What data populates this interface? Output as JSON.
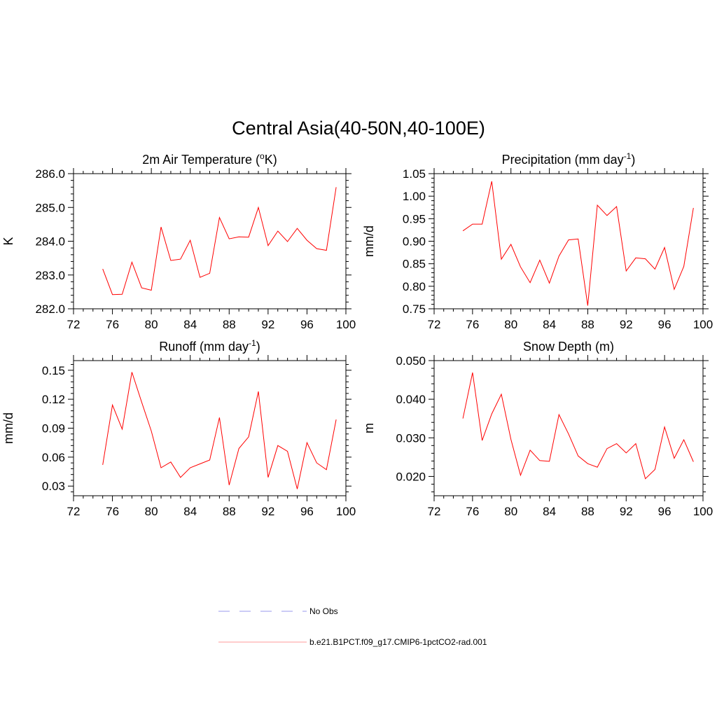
{
  "figure": {
    "title": "Central Asia(40-50N,40-100E)"
  },
  "legend": {
    "items": [
      {
        "label": "No Obs",
        "color": "#9999ee",
        "style": "dashed"
      },
      {
        "label": "b.e21.B1PCT.f09_g17.CMIP6-1pctCO2-rad.001",
        "color": "#ff0000",
        "style": "solid"
      }
    ]
  },
  "chart_data": [
    {
      "type": "line",
      "title": "2m Air Temperature (",
      "title_sup": "o",
      "title_after": "K)",
      "xlabel": "",
      "ylabel": "K",
      "xlim": [
        72,
        100
      ],
      "ylim": [
        282.0,
        286.0
      ],
      "xticks": [
        72,
        76,
        80,
        84,
        88,
        92,
        96,
        100
      ],
      "yticks": [
        282.0,
        283.0,
        284.0,
        285.0,
        286.0
      ],
      "yticklabels": [
        "282.0",
        "283.0",
        "284.0",
        "285.0",
        "286.0"
      ],
      "grid": false,
      "series": [
        {
          "color": "#ff0000",
          "x": [
            75,
            76,
            77,
            78,
            79,
            80,
            81,
            82,
            83,
            84,
            85,
            86,
            87,
            88,
            89,
            90,
            91,
            92,
            93,
            94,
            95,
            96,
            97,
            98,
            99
          ],
          "values": [
            283.18,
            282.42,
            282.43,
            283.38,
            282.62,
            282.55,
            284.42,
            283.43,
            283.47,
            284.03,
            282.93,
            283.05,
            284.7,
            284.07,
            284.13,
            284.12,
            285.0,
            283.87,
            284.3,
            283.99,
            284.38,
            284.03,
            283.78,
            283.73,
            285.6
          ]
        }
      ]
    },
    {
      "type": "line",
      "title": "Precipitation (mm day",
      "title_sup": "-1",
      "title_after": ")",
      "xlabel": "",
      "ylabel": "mm/d",
      "xlim": [
        72,
        100
      ],
      "ylim": [
        0.75,
        1.05
      ],
      "xticks": [
        72,
        76,
        80,
        84,
        88,
        92,
        96,
        100
      ],
      "yticks": [
        0.75,
        0.8,
        0.85,
        0.9,
        0.95,
        1.0,
        1.05
      ],
      "yticklabels": [
        "0.75",
        "0.80",
        "0.85",
        "0.90",
        "0.95",
        "1.00",
        "1.05"
      ],
      "grid": false,
      "series": [
        {
          "color": "#ff0000",
          "x": [
            75,
            76,
            77,
            78,
            79,
            80,
            81,
            82,
            83,
            84,
            85,
            86,
            87,
            88,
            89,
            90,
            91,
            92,
            93,
            94,
            95,
            96,
            97,
            98,
            99
          ],
          "values": [
            0.923,
            0.938,
            0.938,
            1.033,
            0.86,
            0.893,
            0.843,
            0.808,
            0.858,
            0.807,
            0.867,
            0.903,
            0.905,
            0.757,
            0.98,
            0.957,
            0.977,
            0.834,
            0.863,
            0.861,
            0.838,
            0.886,
            0.793,
            0.844,
            0.974
          ]
        }
      ]
    },
    {
      "type": "line",
      "title": "Runoff (mm day",
      "title_sup": "-1",
      "title_after": ")",
      "xlabel": "",
      "ylabel": "mm/d",
      "xlim": [
        72,
        100
      ],
      "ylim": [
        0.02,
        0.16
      ],
      "xticks": [
        72,
        76,
        80,
        84,
        88,
        92,
        96,
        100
      ],
      "yticks": [
        0.03,
        0.06,
        0.09,
        0.12,
        0.15
      ],
      "yticklabels": [
        "0.03",
        "0.06",
        "0.09",
        "0.12",
        "0.15"
      ],
      "grid": false,
      "series": [
        {
          "color": "#ff0000",
          "x": [
            75,
            76,
            77,
            78,
            79,
            80,
            81,
            82,
            83,
            84,
            85,
            86,
            87,
            88,
            89,
            90,
            91,
            92,
            93,
            94,
            95,
            96,
            97,
            98,
            99
          ],
          "values": [
            0.052,
            0.114,
            0.089,
            0.148,
            0.117,
            0.087,
            0.049,
            0.055,
            0.039,
            0.049,
            0.053,
            0.057,
            0.101,
            0.031,
            0.069,
            0.081,
            0.128,
            0.039,
            0.072,
            0.066,
            0.027,
            0.075,
            0.054,
            0.047,
            0.099
          ]
        }
      ]
    },
    {
      "type": "line",
      "title": "Snow Depth (m)",
      "title_sup": "",
      "title_after": "",
      "xlabel": "",
      "ylabel": "m",
      "xlim": [
        72,
        100
      ],
      "ylim": [
        0.015,
        0.05
      ],
      "xticks": [
        72,
        76,
        80,
        84,
        88,
        92,
        96,
        100
      ],
      "yticks": [
        0.02,
        0.03,
        0.04,
        0.05
      ],
      "yticklabels": [
        "0.020",
        "0.030",
        "0.040",
        "0.050"
      ],
      "grid": false,
      "series": [
        {
          "color": "#ff0000",
          "x": [
            75,
            76,
            77,
            78,
            79,
            80,
            81,
            82,
            83,
            84,
            85,
            86,
            87,
            88,
            89,
            90,
            91,
            92,
            93,
            94,
            95,
            96,
            97,
            98,
            99
          ],
          "values": [
            0.035,
            0.0469,
            0.0293,
            0.0362,
            0.0413,
            0.0296,
            0.0203,
            0.0268,
            0.0241,
            0.0239,
            0.036,
            0.031,
            0.0253,
            0.0233,
            0.0224,
            0.0272,
            0.0285,
            0.0261,
            0.0285,
            0.0194,
            0.0218,
            0.0328,
            0.0247,
            0.0295,
            0.0238
          ]
        }
      ]
    }
  ]
}
